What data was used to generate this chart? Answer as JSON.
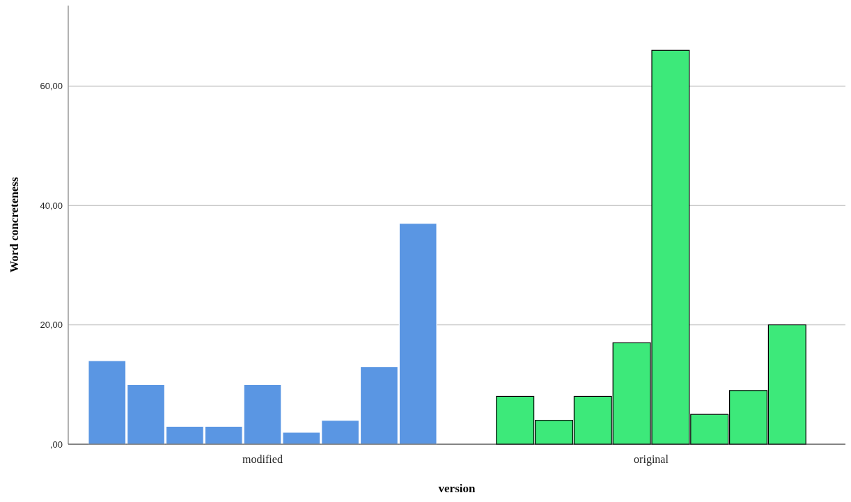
{
  "chart_data": {
    "type": "bar",
    "xlabel": "version",
    "ylabel": "Word concreteness",
    "categories": [
      "modified",
      "original"
    ],
    "series": [
      {
        "colors": [
          "#5a96e3",
          "#3de97a"
        ],
        "values": [
          14,
          8
        ]
      },
      {
        "colors": [
          "#5a96e3",
          "#3de97a"
        ],
        "values": [
          10,
          4
        ]
      },
      {
        "colors": [
          "#5a96e3",
          "#3de97a"
        ],
        "values": [
          3,
          8
        ]
      },
      {
        "colors": [
          "#5a96e3",
          "#3de97a"
        ],
        "values": [
          3,
          17
        ]
      },
      {
        "colors": [
          "#5a96e3",
          "#3de97a"
        ],
        "values": [
          10,
          66
        ]
      },
      {
        "colors": [
          "#5a96e3",
          "#3de97a"
        ],
        "values": [
          2,
          5
        ]
      },
      {
        "colors": [
          "#5a96e3",
          "#3de97a"
        ],
        "values": [
          4,
          9
        ]
      },
      {
        "colors": [
          "#5a96e3",
          "#3de97a"
        ],
        "values": [
          13,
          20
        ]
      },
      {
        "colors": [
          "#5a96e3",
          null
        ],
        "values": [
          37,
          null
        ]
      }
    ],
    "ylim": [
      0,
      73.5
    ],
    "yticks": [
      {
        "value": 0,
        "label": ",00"
      },
      {
        "value": 20,
        "label": "20,00"
      },
      {
        "value": 40,
        "label": "40,00"
      },
      {
        "value": 60,
        "label": "60,00"
      }
    ],
    "grid": "y"
  }
}
